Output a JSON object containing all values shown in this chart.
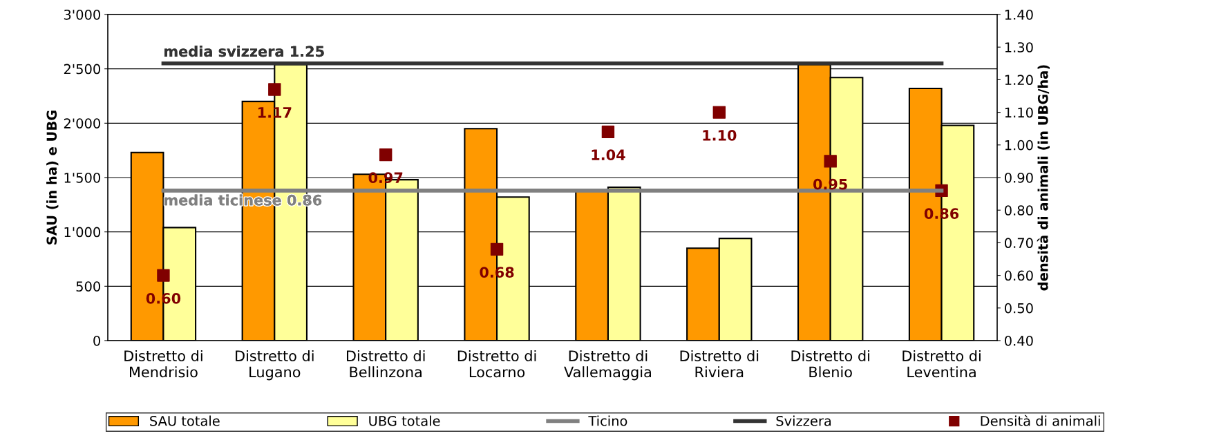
{
  "chart_data": {
    "type": "bar",
    "categories": [
      "Distretto di\nMendrisio",
      "Distretto di\nLugano",
      "Distretto di\nBellinzona",
      "Distretto di\nLocarno",
      "Distretto di\nVallemaggia",
      "Distretto di\nRiviera",
      "Distretto di\nBlenio",
      "Distretto di\nLeventina"
    ],
    "ylabel": "SAU (in ha) e UBG",
    "y2label": "densità di animali (in UBG/ha)",
    "series": [
      {
        "name": "SAU totale",
        "color": "#ff9900",
        "values": [
          1730,
          2200,
          1530,
          1950,
          1380,
          850,
          2540,
          2320
        ]
      },
      {
        "name": "UBG totale",
        "color": "#ffff99",
        "values": [
          1040,
          2540,
          1480,
          1320,
          1410,
          940,
          2420,
          1980
        ]
      },
      {
        "name": "Ticino",
        "type": "line",
        "axis": "y2",
        "color": "#808080",
        "values": [
          0.86,
          0.86,
          0.86,
          0.86,
          0.86,
          0.86,
          0.86,
          0.86
        ]
      },
      {
        "name": "Svizzera",
        "type": "line",
        "axis": "y2",
        "color": "#333333",
        "values": [
          1.25,
          1.25,
          1.25,
          1.25,
          1.25,
          1.25,
          1.25,
          1.25
        ]
      },
      {
        "name": "Densità di animali",
        "type": "scatter",
        "axis": "y2",
        "marker": "square",
        "color": "#800000",
        "values": [
          0.6,
          1.17,
          0.97,
          0.68,
          1.04,
          1.1,
          0.95,
          0.86
        ],
        "value_labels": [
          "0.60",
          "1.17",
          "0.97",
          "0.68",
          "1.04",
          "1.10",
          "0.95",
          "0.86"
        ]
      }
    ],
    "annotations": [
      "media svizzera 1.25",
      "media ticinese 0.86"
    ],
    "ylim": [
      0,
      3000
    ],
    "yticks": [
      {
        "value": 0,
        "label": "0"
      },
      {
        "value": 500,
        "label": "500"
      },
      {
        "value": 1000,
        "label": "1'000"
      },
      {
        "value": 1500,
        "label": "1'500"
      },
      {
        "value": 2000,
        "label": "2'000"
      },
      {
        "value": 2500,
        "label": "2'500"
      },
      {
        "value": 3000,
        "label": "3'000"
      }
    ],
    "y2lim": [
      0.4,
      1.4
    ],
    "y2ticks": [
      {
        "value": 0.4,
        "label": "0.40"
      },
      {
        "value": 0.5,
        "label": "0.50"
      },
      {
        "value": 0.6,
        "label": "0.60"
      },
      {
        "value": 0.7,
        "label": "0.70"
      },
      {
        "value": 0.8,
        "label": "0.80"
      },
      {
        "value": 0.9,
        "label": "0.90"
      },
      {
        "value": 1.0,
        "label": "1.00"
      },
      {
        "value": 1.1,
        "label": "1.10"
      },
      {
        "value": 1.2,
        "label": "1.20"
      },
      {
        "value": 1.3,
        "label": "1.30"
      },
      {
        "value": 1.4,
        "label": "1.40"
      }
    ],
    "grid": "y",
    "legend": "bottom"
  }
}
